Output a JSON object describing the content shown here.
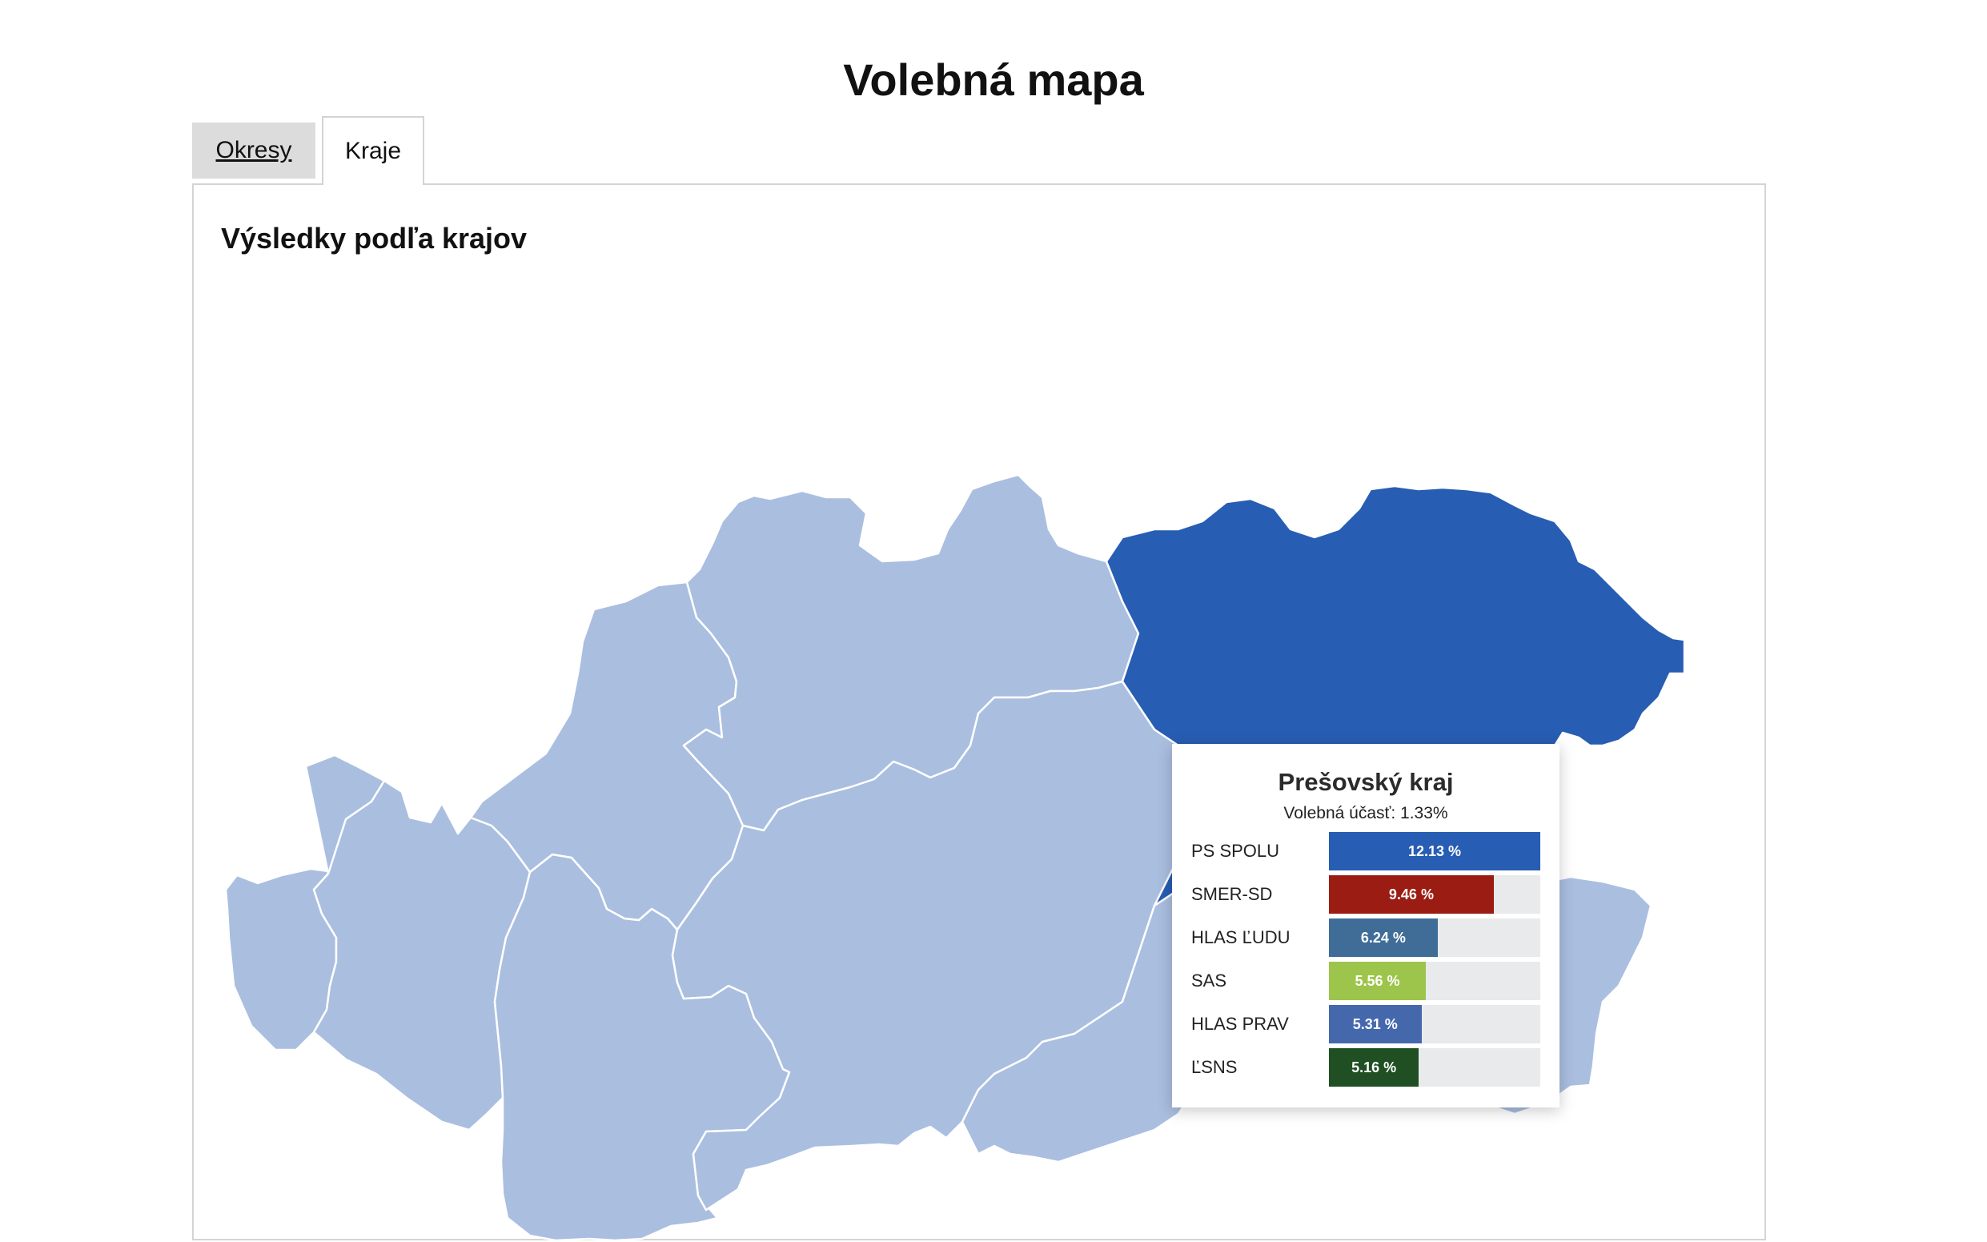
{
  "page": {
    "title": "Volebná mapa"
  },
  "tabs": [
    {
      "label": "Okresy",
      "active": false
    },
    {
      "label": "Kraje",
      "active": true
    }
  ],
  "panel": {
    "heading": "Výsledky podľa krajov"
  },
  "colors": {
    "region_default": "#aabee0",
    "region_highlight": "#275db3",
    "region_border": "#ffffff"
  },
  "tooltip": {
    "region": "Prešovský kraj",
    "turnout_label": "Volebná účasť: 1.33%",
    "max_value": 12.13,
    "rows": [
      {
        "party": "PS SPOLU",
        "value": 12.13,
        "label": "12.13 %",
        "color": "#275db3"
      },
      {
        "party": "SMER-SD",
        "value": 9.46,
        "label": "9.46 %",
        "color": "#9b1c13"
      },
      {
        "party": "HLAS ĽUDU",
        "value": 6.24,
        "label": "6.24 %",
        "color": "#3f6d98"
      },
      {
        "party": "SAS",
        "value": 5.56,
        "label": "5.56 %",
        "color": "#9dc54b"
      },
      {
        "party": "HLAS PRAV",
        "value": 5.31,
        "label": "5.31 %",
        "color": "#4568ad"
      },
      {
        "party": "ĽSNS",
        "value": 5.16,
        "label": "5.16 %",
        "color": "#1f4f22"
      }
    ]
  }
}
